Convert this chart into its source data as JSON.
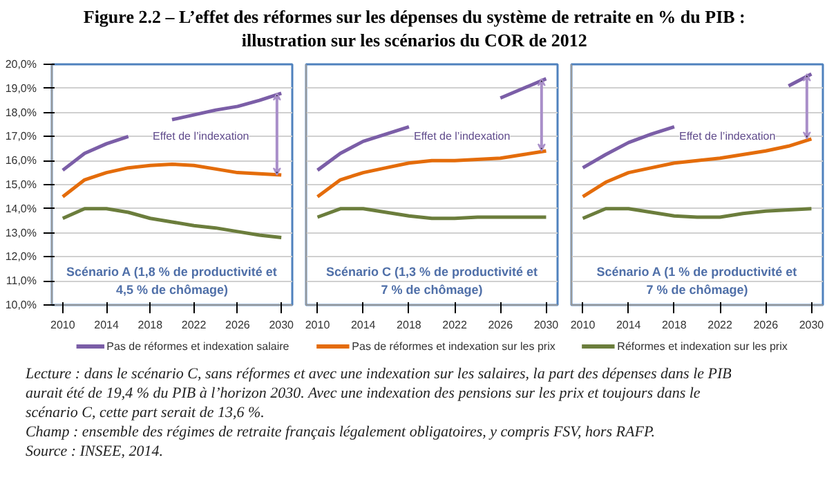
{
  "chart_data": [
    {
      "type": "line",
      "title": "Figure 2.2 – L’effet des réformes sur les dépenses du système de retraite en % du PIB :\nillustration sur les scénarios du COR de 2012",
      "x": [
        2010,
        2012,
        2014,
        2016,
        2018,
        2020,
        2022,
        2024,
        2026,
        2028,
        2030
      ],
      "series": [
        {
          "name": "Pas de réformes et indexation salaire",
          "color": "#7b5ea7",
          "values": [
            15.6,
            16.3,
            16.7,
            17.0,
            null,
            17.7,
            17.9,
            18.1,
            18.25,
            18.5,
            18.8
          ]
        },
        {
          "color": "#e46c0a",
          "values": [
            14.5,
            15.2,
            15.5,
            15.7,
            15.8,
            15.85,
            15.8,
            15.65,
            15.5,
            15.45,
            15.4
          ]
        },
        {
          "color": "#6b7d3c",
          "values": [
            13.6,
            14.0,
            14.0,
            13.85,
            13.6,
            13.45,
            13.3,
            13.2,
            13.05,
            12.9,
            12.8
          ]
        }
      ],
      "annotations": [
        "Scénario A (1,8 % de productivité et\n4,5 % de chômage)",
        "Effet de l’indexation",
        "Lecture : dans le scénario C, sans réformes et avec une indexation sur les salaires, la part des dépenses dans le PIB aurait été de 19,4 % du PIB à l’horizon 2030. Avec une indexation des pensions sur les prix et toujours dans le scénario C, cette part serait de 13,6 %.",
        "Champ : ensemble des régimes de retraite français légalement obligatoires, y compris FSV, hors RAFP.",
        "Source : INSEE, 2014."
      ],
      "xlim": [
        2009,
        2031
      ],
      "xticks": [
        2010,
        2014,
        2018,
        2022,
        2026,
        2030
      ],
      "ylim": [
        10,
        20
      ],
      "yticks": [
        {
          "value": 10,
          "label": "10,0%"
        },
        {
          "value": 11,
          "label": "11,0%"
        },
        {
          "value": 12,
          "label": "12,0%"
        },
        {
          "value": 13,
          "label": "13,0%"
        },
        {
          "value": 14,
          "label": "14,0%"
        },
        {
          "value": 15,
          "label": "15,0%"
        },
        {
          "value": 16,
          "label": "16,0%"
        },
        {
          "value": 17,
          "label": "17,0%"
        },
        {
          "value": 18,
          "label": "18,0%"
        },
        {
          "value": 19,
          "label": "19,0%"
        },
        {
          "value": 20,
          "label": "20,0%"
        }
      ],
      "grid": "y",
      "legend": "bottom"
    },
    {
      "type": "line",
      "x": [
        2010,
        2012,
        2014,
        2016,
        2018,
        2020,
        2022,
        2024,
        2026,
        2028,
        2030
      ],
      "series": [
        {
          "color": "#7b5ea7",
          "values": [
            15.6,
            16.3,
            16.8,
            17.1,
            17.4,
            null,
            null,
            null,
            18.6,
            19.0,
            19.4
          ]
        },
        {
          "name": "Pas de réformes et indexation sur les prix",
          "color": "#e46c0a",
          "values": [
            14.5,
            15.2,
            15.5,
            15.7,
            15.9,
            16.0,
            16.0,
            16.05,
            16.1,
            16.25,
            16.4
          ]
        },
        {
          "color": "#6b7d3c",
          "values": [
            13.65,
            14.0,
            14.0,
            13.85,
            13.7,
            13.6,
            13.6,
            13.65,
            13.65,
            13.65,
            13.65
          ]
        }
      ],
      "annotations": [
        "Scénario C (1,3 % de productivité et\n7 % de chômage)",
        "Effet de l’indexation"
      ],
      "xlim": [
        2009,
        2031
      ],
      "xticks": [
        2010,
        2014,
        2018,
        2022,
        2026,
        2030
      ],
      "ylim": [
        10,
        20
      ],
      "yticks": [
        {
          "value": 10,
          "label": "10,0%"
        },
        {
          "value": 11,
          "label": "11,0%"
        },
        {
          "value": 12,
          "label": "12,0%"
        },
        {
          "value": 13,
          "label": "13,0%"
        },
        {
          "value": 14,
          "label": "14,0%"
        },
        {
          "value": 15,
          "label": "15,0%"
        },
        {
          "value": 16,
          "label": "16,0%"
        },
        {
          "value": 17,
          "label": "17,0%"
        },
        {
          "value": 18,
          "label": "18,0%"
        },
        {
          "value": 19,
          "label": "19,0%"
        },
        {
          "value": 20,
          "label": "20,0%"
        }
      ],
      "grid": "y",
      "legend": "bottom",
      "tick_labels": "x"
    },
    {
      "type": "line",
      "x": [
        2010,
        2012,
        2014,
        2016,
        2018,
        2020,
        2022,
        2024,
        2026,
        2028,
        2030
      ],
      "series": [
        {
          "color": "#7b5ea7",
          "values": [
            15.7,
            16.25,
            16.75,
            17.1,
            17.4,
            null,
            null,
            null,
            null,
            19.1,
            19.6
          ]
        },
        {
          "color": "#e46c0a",
          "values": [
            14.5,
            15.1,
            15.5,
            15.7,
            15.9,
            16.0,
            16.1,
            16.25,
            16.4,
            16.6,
            16.9
          ]
        },
        {
          "name": "Réformes et indexation sur les prix",
          "color": "#6b7d3c",
          "values": [
            13.6,
            14.0,
            14.0,
            13.85,
            13.7,
            13.65,
            13.65,
            13.8,
            13.9,
            13.95,
            14.0
          ]
        }
      ],
      "annotations": [
        "Scénario A (1 % de productivité et\n7 % de chômage)",
        "Effet de l’indexation"
      ],
      "xlim": [
        2009,
        2031
      ],
      "xticks": [
        2010,
        2014,
        2018,
        2022,
        2026,
        2030
      ],
      "ylim": [
        10,
        20
      ],
      "yticks": [
        {
          "value": 10,
          "label": "10,0%"
        },
        {
          "value": 11,
          "label": "11,0%"
        },
        {
          "value": 12,
          "label": "12,0%"
        },
        {
          "value": 13,
          "label": "13,0%"
        },
        {
          "value": 14,
          "label": "14,0%"
        },
        {
          "value": 15,
          "label": "15,0%"
        },
        {
          "value": 16,
          "label": "16,0%"
        },
        {
          "value": 17,
          "label": "17,0%"
        },
        {
          "value": 18,
          "label": "18,0%"
        },
        {
          "value": 19,
          "label": "19,0%"
        },
        {
          "value": 20,
          "label": "20,0%"
        }
      ],
      "grid": "y",
      "legend": "bottom",
      "tick_labels": "x"
    }
  ]
}
